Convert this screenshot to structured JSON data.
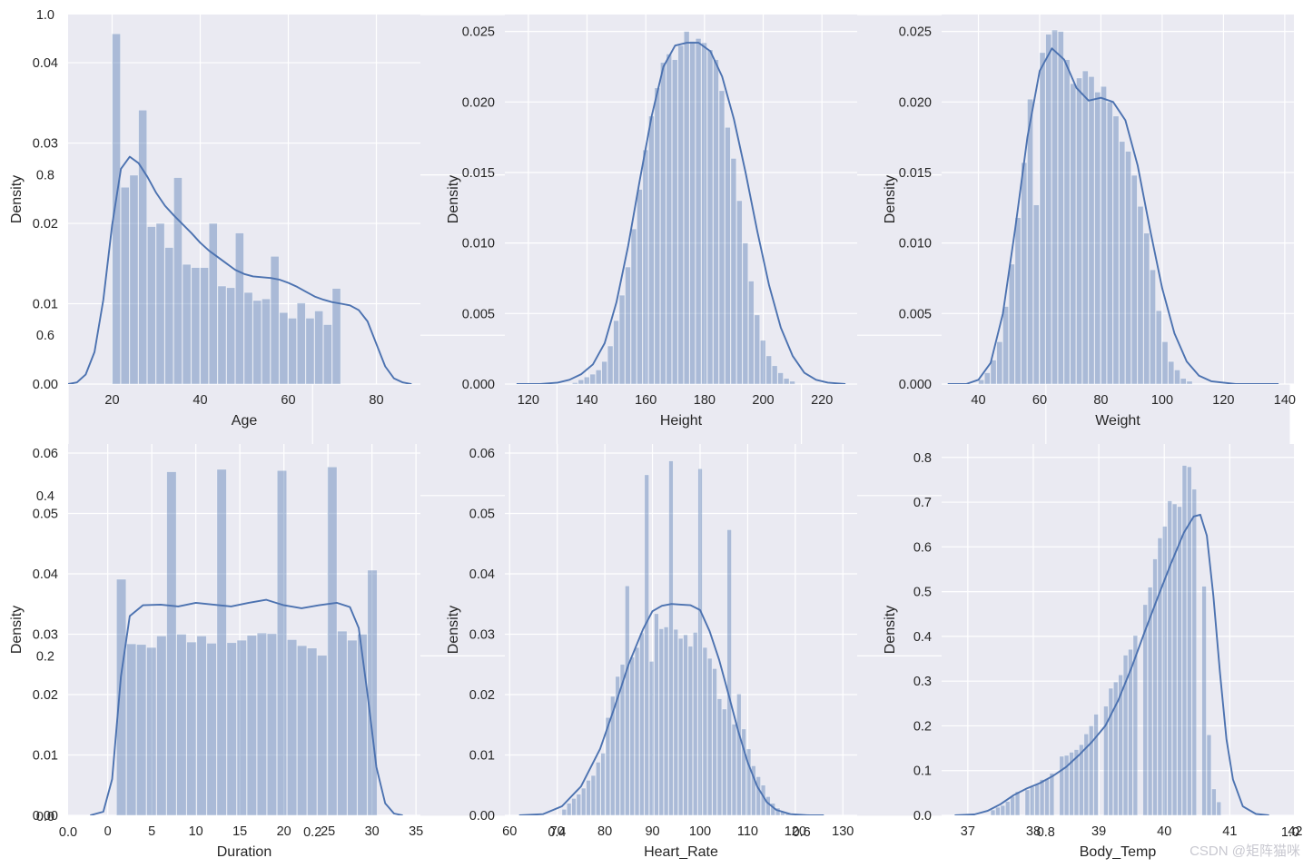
{
  "figure": {
    "colors": {
      "background": "#eaeaf2",
      "grid": "#ffffff",
      "bar": "#4c72b0",
      "bar_opacity": 0.4,
      "kde": "#4c72b0",
      "text": "#262626"
    },
    "ghost_ticks": {
      "x": [
        "0.0",
        "0.2",
        "0.4",
        "0.6",
        "0.8",
        "1.0"
      ],
      "y": [
        "0.0",
        "0.2",
        "0.4",
        "0.6",
        "0.8",
        "1.0"
      ]
    },
    "watermark": "CSDN @矩阵猫咪"
  },
  "chart_data": [
    {
      "type": "bar",
      "subtype": "histogram+kde",
      "title": "",
      "xlabel": "Age",
      "ylabel": "Density",
      "xlim": [
        10,
        90
      ],
      "ylim": [
        0,
        0.046
      ],
      "xticks": [
        20,
        40,
        60,
        80
      ],
      "yticks": [
        0.0,
        0.01,
        0.02,
        0.03,
        0.04
      ],
      "ytick_labels": [
        "0.00",
        "0.01",
        "0.02",
        "0.03",
        "0.04"
      ],
      "bins": {
        "start": 20,
        "width": 2
      },
      "values": [
        0.0436,
        0.0245,
        0.026,
        0.0341,
        0.0196,
        0.02,
        0.017,
        0.0257,
        0.0149,
        0.0145,
        0.0145,
        0.02,
        0.0122,
        0.012,
        0.0188,
        0.0114,
        0.0104,
        0.0106,
        0.0159,
        0.0089,
        0.0082,
        0.0101,
        0.0082,
        0.0091,
        0.0074,
        0.0119
      ],
      "kde": [
        [
          10,
          0
        ],
        [
          12,
          0.0002
        ],
        [
          14,
          0.0012
        ],
        [
          16,
          0.004
        ],
        [
          18,
          0.0105
        ],
        [
          20,
          0.0198
        ],
        [
          22,
          0.0268
        ],
        [
          24,
          0.0283
        ],
        [
          26,
          0.0275
        ],
        [
          28,
          0.0258
        ],
        [
          30,
          0.0238
        ],
        [
          32,
          0.0222
        ],
        [
          34,
          0.021
        ],
        [
          36,
          0.0199
        ],
        [
          38,
          0.0188
        ],
        [
          40,
          0.0176
        ],
        [
          42,
          0.0166
        ],
        [
          44,
          0.0158
        ],
        [
          46,
          0.015
        ],
        [
          48,
          0.0142
        ],
        [
          50,
          0.0137
        ],
        [
          52,
          0.0134
        ],
        [
          54,
          0.0133
        ],
        [
          56,
          0.0132
        ],
        [
          58,
          0.013
        ],
        [
          60,
          0.0126
        ],
        [
          62,
          0.0121
        ],
        [
          64,
          0.0115
        ],
        [
          66,
          0.0109
        ],
        [
          68,
          0.0105
        ],
        [
          70,
          0.0102
        ],
        [
          72,
          0.01
        ],
        [
          74,
          0.0098
        ],
        [
          76,
          0.0092
        ],
        [
          78,
          0.0078
        ],
        [
          80,
          0.005
        ],
        [
          82,
          0.0022
        ],
        [
          84,
          0.0007
        ],
        [
          86,
          0.0002
        ],
        [
          88,
          0
        ]
      ]
    },
    {
      "type": "bar",
      "subtype": "histogram+kde",
      "title": "",
      "xlabel": "Height",
      "ylabel": "Density",
      "xlim": [
        112,
        232
      ],
      "ylim": [
        0,
        0.0262
      ],
      "xticks": [
        120,
        140,
        160,
        180,
        200,
        220
      ],
      "yticks": [
        0.0,
        0.005,
        0.01,
        0.015,
        0.02,
        0.025
      ],
      "ytick_labels": [
        "0.000",
        "0.005",
        "0.010",
        "0.015",
        "0.020",
        "0.025"
      ],
      "bins": {
        "start": 135,
        "width": 2
      },
      "values": [
        0.0001,
        0.0003,
        0.0005,
        0.0007,
        0.001,
        0.0016,
        0.0027,
        0.0045,
        0.0063,
        0.0083,
        0.011,
        0.0138,
        0.0166,
        0.019,
        0.021,
        0.0228,
        0.0234,
        0.023,
        0.024,
        0.025,
        0.0243,
        0.0245,
        0.0242,
        0.0237,
        0.023,
        0.0208,
        0.0182,
        0.016,
        0.013,
        0.01,
        0.0073,
        0.0049,
        0.0031,
        0.002,
        0.0013,
        0.0008,
        0.0004,
        0.0002
      ],
      "kde": [
        [
          116,
          0
        ],
        [
          124,
          0.0
        ],
        [
          130,
          0.0001
        ],
        [
          134,
          0.0003
        ],
        [
          138,
          0.0007
        ],
        [
          142,
          0.0014
        ],
        [
          146,
          0.0029
        ],
        [
          150,
          0.0058
        ],
        [
          154,
          0.0098
        ],
        [
          158,
          0.0145
        ],
        [
          162,
          0.019
        ],
        [
          166,
          0.0225
        ],
        [
          170,
          0.024
        ],
        [
          174,
          0.0242
        ],
        [
          178,
          0.0242
        ],
        [
          182,
          0.0236
        ],
        [
          186,
          0.0218
        ],
        [
          190,
          0.0188
        ],
        [
          194,
          0.015
        ],
        [
          198,
          0.0108
        ],
        [
          202,
          0.007
        ],
        [
          206,
          0.004
        ],
        [
          210,
          0.002
        ],
        [
          214,
          0.0008
        ],
        [
          218,
          0.0003
        ],
        [
          222,
          0.0001
        ],
        [
          228,
          0
        ]
      ]
    },
    {
      "type": "bar",
      "subtype": "histogram+kde",
      "title": "",
      "xlabel": "Weight",
      "ylabel": "Density",
      "xlim": [
        28,
        143
      ],
      "ylim": [
        0,
        0.0262
      ],
      "xticks": [
        40,
        60,
        80,
        100,
        120,
        140
      ],
      "yticks": [
        0.0,
        0.005,
        0.01,
        0.015,
        0.02,
        0.025
      ],
      "ytick_labels": [
        "0.000",
        "0.005",
        "0.010",
        "0.015",
        "0.020",
        "0.025"
      ],
      "bins": {
        "start": 40,
        "width": 2
      },
      "values": [
        0.0003,
        0.0008,
        0.0017,
        0.003,
        0.0055,
        0.0085,
        0.0118,
        0.0157,
        0.0202,
        0.0127,
        0.0235,
        0.0248,
        0.0251,
        0.025,
        0.023,
        0.0213,
        0.0217,
        0.0222,
        0.0218,
        0.0207,
        0.0211,
        0.02,
        0.019,
        0.0172,
        0.0165,
        0.0148,
        0.0126,
        0.0107,
        0.0081,
        0.0052,
        0.003,
        0.0016,
        0.001,
        0.0004,
        0.0002
      ],
      "kde": [
        [
          30,
          0
        ],
        [
          36,
          0.0
        ],
        [
          40,
          0.0003
        ],
        [
          44,
          0.0015
        ],
        [
          48,
          0.005
        ],
        [
          52,
          0.011
        ],
        [
          56,
          0.0175
        ],
        [
          60,
          0.0222
        ],
        [
          64,
          0.0238
        ],
        [
          68,
          0.023
        ],
        [
          72,
          0.021
        ],
        [
          76,
          0.0201
        ],
        [
          80,
          0.0203
        ],
        [
          84,
          0.02
        ],
        [
          88,
          0.0187
        ],
        [
          92,
          0.0155
        ],
        [
          96,
          0.011
        ],
        [
          100,
          0.0068
        ],
        [
          104,
          0.0036
        ],
        [
          108,
          0.0016
        ],
        [
          112,
          0.0006
        ],
        [
          116,
          0.0002
        ],
        [
          124,
          0.0
        ],
        [
          138,
          0
        ]
      ]
    },
    {
      "type": "bar",
      "subtype": "histogram+kde",
      "title": "",
      "xlabel": "Duration",
      "ylabel": "Density",
      "xlim": [
        -4.5,
        35.5
      ],
      "ylim": [
        0,
        0.0615
      ],
      "xticks": [
        0,
        5,
        10,
        15,
        20,
        25,
        30,
        35
      ],
      "yticks": [
        0.0,
        0.01,
        0.02,
        0.03,
        0.04,
        0.05,
        0.06
      ],
      "ytick_labels": [
        "0.00",
        "0.01",
        "0.02",
        "0.03",
        "0.04",
        "0.05",
        "0.06"
      ],
      "bins": {
        "start": 1,
        "width": 1.14
      },
      "values": [
        0.0391,
        0.0284,
        0.0283,
        0.0278,
        0.0297,
        0.0569,
        0.03,
        0.0287,
        0.0297,
        0.0285,
        0.0573,
        0.0286,
        0.029,
        0.0298,
        0.0302,
        0.0301,
        0.0571,
        0.0291,
        0.0281,
        0.0277,
        0.0265,
        0.0577,
        0.0305,
        0.029,
        0.03,
        0.0406
      ],
      "kde": [
        [
          -2,
          0
        ],
        [
          -0.5,
          0.0006
        ],
        [
          0.5,
          0.006
        ],
        [
          1.5,
          0.023
        ],
        [
          2.5,
          0.033
        ],
        [
          4,
          0.0348
        ],
        [
          6,
          0.0349
        ],
        [
          8,
          0.0346
        ],
        [
          10,
          0.0352
        ],
        [
          12,
          0.0349
        ],
        [
          14,
          0.0346
        ],
        [
          16,
          0.0352
        ],
        [
          18,
          0.0357
        ],
        [
          20,
          0.0348
        ],
        [
          22,
          0.0343
        ],
        [
          24,
          0.0348
        ],
        [
          26,
          0.0352
        ],
        [
          27.5,
          0.0345
        ],
        [
          28.5,
          0.031
        ],
        [
          29.5,
          0.02
        ],
        [
          30.5,
          0.008
        ],
        [
          31.5,
          0.002
        ],
        [
          32.5,
          0.0003
        ],
        [
          33.5,
          0
        ]
      ]
    },
    {
      "type": "bar",
      "subtype": "histogram+kde",
      "title": "",
      "xlabel": "Heart_Rate",
      "ylabel": "Density",
      "xlim": [
        59,
        133
      ],
      "ylim": [
        0,
        0.0615
      ],
      "xticks": [
        60,
        70,
        80,
        90,
        100,
        110,
        120,
        130
      ],
      "yticks": [
        0.0,
        0.01,
        0.02,
        0.03,
        0.04,
        0.05,
        0.06
      ],
      "ytick_labels": [
        "0.00",
        "0.01",
        "0.02",
        "0.03",
        "0.04",
        "0.05",
        "0.06"
      ],
      "bins": {
        "start": 71,
        "width": 1.02
      },
      "values": [
        0.001,
        0.002,
        0.0028,
        0.0035,
        0.0045,
        0.0058,
        0.0066,
        0.0088,
        0.0103,
        0.0162,
        0.0197,
        0.023,
        0.025,
        0.038,
        0.0262,
        0.0278,
        0.0302,
        0.0564,
        0.0255,
        0.0334,
        0.0309,
        0.0312,
        0.0587,
        0.0308,
        0.0293,
        0.0299,
        0.028,
        0.0303,
        0.0574,
        0.0278,
        0.026,
        0.0243,
        0.0193,
        0.0176,
        0.0473,
        0.0151,
        0.0201,
        0.0143,
        0.011,
        0.0082,
        0.0064,
        0.005,
        0.0031,
        0.002,
        0.0012,
        0.0006,
        0.0003
      ],
      "kde": [
        [
          62,
          0
        ],
        [
          67,
          0.0002
        ],
        [
          71,
          0.0015
        ],
        [
          75,
          0.0048
        ],
        [
          79,
          0.011
        ],
        [
          82,
          0.0178
        ],
        [
          85,
          0.025
        ],
        [
          88,
          0.0308
        ],
        [
          90,
          0.0338
        ],
        [
          92,
          0.0347
        ],
        [
          94,
          0.035
        ],
        [
          96,
          0.0349
        ],
        [
          98,
          0.0348
        ],
        [
          100,
          0.034
        ],
        [
          102,
          0.0305
        ],
        [
          104,
          0.0258
        ],
        [
          106,
          0.02
        ],
        [
          108,
          0.014
        ],
        [
          110,
          0.0088
        ],
        [
          112,
          0.0048
        ],
        [
          114,
          0.0022
        ],
        [
          116,
          0.0009
        ],
        [
          119,
          0.0002
        ],
        [
          123,
          0.0
        ],
        [
          126,
          0
        ]
      ]
    },
    {
      "type": "bar",
      "subtype": "histogram+kde",
      "title": "",
      "xlabel": "Body_Temp",
      "ylabel": "Density",
      "xlim": [
        36.6,
        41.98
      ],
      "ylim": [
        0,
        0.83
      ],
      "xticks": [
        37,
        38,
        39,
        40,
        41,
        42
      ],
      "yticks": [
        0.0,
        0.1,
        0.2,
        0.3,
        0.4,
        0.5,
        0.6,
        0.7,
        0.8
      ],
      "ytick_labels": [
        "0.0",
        "0.1",
        "0.2",
        "0.3",
        "0.4",
        "0.5",
        "0.6",
        "0.7",
        "0.8"
      ],
      "bins": {
        "start": 37.35,
        "width": 0.075
      },
      "values": [
        0.012,
        0.018,
        0.022,
        0.031,
        0.042,
        0.053,
        0.0,
        0.057,
        0.064,
        0.069,
        0.08,
        0.082,
        0.094,
        0.0,
        0.132,
        0.134,
        0.141,
        0.147,
        0.158,
        0.182,
        0.2,
        0.226,
        0.0,
        0.244,
        0.284,
        0.298,
        0.314,
        0.358,
        0.371,
        0.402,
        0.0,
        0.471,
        0.51,
        0.573,
        0.62,
        0.646,
        0.703,
        0.696,
        0.69,
        0.782,
        0.779,
        0.729,
        0.0,
        0.512,
        0.18,
        0.059,
        0.03
      ],
      "kde": [
        [
          36.8,
          0
        ],
        [
          37.1,
          0.002
        ],
        [
          37.3,
          0.01
        ],
        [
          37.5,
          0.025
        ],
        [
          37.7,
          0.045
        ],
        [
          37.9,
          0.06
        ],
        [
          38.1,
          0.072
        ],
        [
          38.3,
          0.088
        ],
        [
          38.5,
          0.108
        ],
        [
          38.7,
          0.135
        ],
        [
          38.9,
          0.165
        ],
        [
          39.1,
          0.2
        ],
        [
          39.3,
          0.258
        ],
        [
          39.5,
          0.33
        ],
        [
          39.7,
          0.41
        ],
        [
          39.9,
          0.487
        ],
        [
          40.1,
          0.562
        ],
        [
          40.3,
          0.632
        ],
        [
          40.45,
          0.668
        ],
        [
          40.55,
          0.672
        ],
        [
          40.65,
          0.625
        ],
        [
          40.75,
          0.49
        ],
        [
          40.85,
          0.32
        ],
        [
          40.95,
          0.17
        ],
        [
          41.05,
          0.08
        ],
        [
          41.2,
          0.02
        ],
        [
          41.4,
          0.003
        ],
        [
          41.6,
          0
        ]
      ]
    }
  ]
}
